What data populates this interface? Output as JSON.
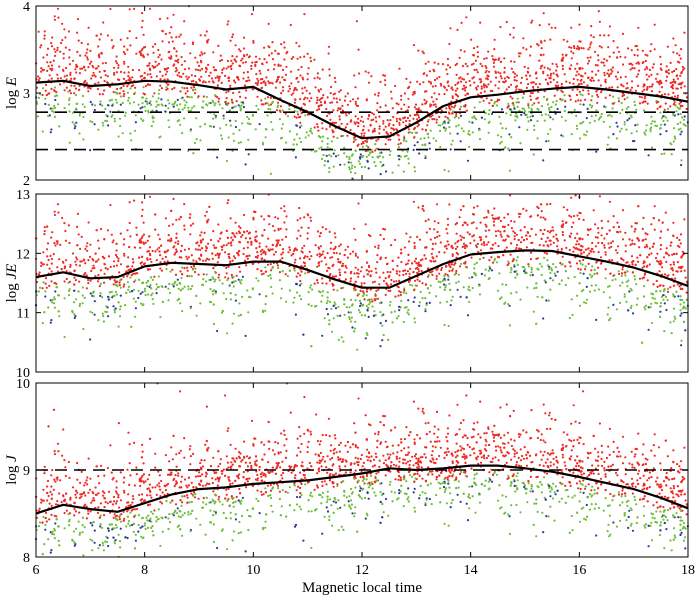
{
  "chart_data": [
    {
      "type": "scatter",
      "panel": "top",
      "ylabel_prefix": "log ",
      "ylabel_var": "E",
      "xlim": [
        6,
        18
      ],
      "ylim": [
        2,
        4
      ],
      "yticks": [
        2,
        3,
        4
      ],
      "xticks": [
        6,
        8,
        10,
        12,
        14,
        16,
        18
      ],
      "series_colors": {
        "red": "#ee2a24",
        "green": "#6cbf3a",
        "blue": "#2e3a9a"
      },
      "reference_lines": [
        2.78,
        2.35
      ],
      "mean_curve": {
        "x": [
          6,
          6.5,
          7,
          7.5,
          8,
          8.5,
          9,
          9.5,
          10,
          10.5,
          11,
          11.5,
          12,
          12.5,
          13,
          13.5,
          14,
          14.5,
          15,
          15.5,
          16,
          16.5,
          17,
          17.5,
          18
        ],
        "y": [
          3.12,
          3.14,
          3.08,
          3.1,
          3.14,
          3.13,
          3.09,
          3.04,
          3.07,
          2.92,
          2.78,
          2.62,
          2.48,
          2.5,
          2.66,
          2.85,
          2.95,
          2.98,
          3.02,
          3.05,
          3.07,
          3.04,
          3.0,
          2.96,
          2.9
        ]
      }
    },
    {
      "type": "scatter",
      "panel": "middle",
      "ylabel_prefix": "log ",
      "ylabel_var": "JE",
      "xlim": [
        6,
        18
      ],
      "ylim": [
        10,
        13
      ],
      "yticks": [
        10,
        11,
        12,
        13
      ],
      "xticks": [
        6,
        8,
        10,
        12,
        14,
        16,
        18
      ],
      "series_colors": {
        "red": "#ee2a24",
        "green": "#6cbf3a",
        "blue": "#2e3a9a"
      },
      "reference_lines": [],
      "mean_curve": {
        "x": [
          6,
          6.5,
          7,
          7.5,
          8,
          8.5,
          9,
          9.5,
          10,
          10.5,
          11,
          11.5,
          12,
          12.5,
          13,
          13.5,
          14,
          14.5,
          15,
          15.5,
          16,
          16.5,
          17,
          17.5,
          18
        ],
        "y": [
          11.6,
          11.68,
          11.58,
          11.6,
          11.78,
          11.84,
          11.82,
          11.8,
          11.86,
          11.86,
          11.72,
          11.56,
          11.42,
          11.42,
          11.62,
          11.82,
          11.98,
          12.02,
          12.05,
          12.04,
          11.95,
          11.86,
          11.76,
          11.62,
          11.45
        ]
      }
    },
    {
      "type": "scatter",
      "panel": "bottom",
      "ylabel_prefix": "log ",
      "ylabel_var": "J",
      "xlabel": "Magnetic local time",
      "xlim": [
        6,
        18
      ],
      "ylim": [
        8,
        10
      ],
      "yticks": [
        8,
        9,
        10
      ],
      "xticks": [
        6,
        8,
        10,
        12,
        14,
        16,
        18
      ],
      "series_colors": {
        "red": "#ee2a24",
        "green": "#6cbf3a",
        "blue": "#2e3a9a"
      },
      "reference_lines": [
        9.0
      ],
      "mean_curve": {
        "x": [
          6,
          6.5,
          7,
          7.5,
          8,
          8.5,
          9,
          9.5,
          10,
          10.5,
          11,
          11.5,
          12,
          12.5,
          13,
          13.5,
          14,
          14.5,
          15,
          15.5,
          16,
          16.5,
          17,
          17.5,
          18
        ],
        "y": [
          8.5,
          8.6,
          8.55,
          8.52,
          8.62,
          8.72,
          8.78,
          8.8,
          8.84,
          8.86,
          8.88,
          8.92,
          8.96,
          9.02,
          9.0,
          9.02,
          9.05,
          9.05,
          9.02,
          8.98,
          8.92,
          8.85,
          8.78,
          8.68,
          8.56
        ]
      }
    }
  ]
}
